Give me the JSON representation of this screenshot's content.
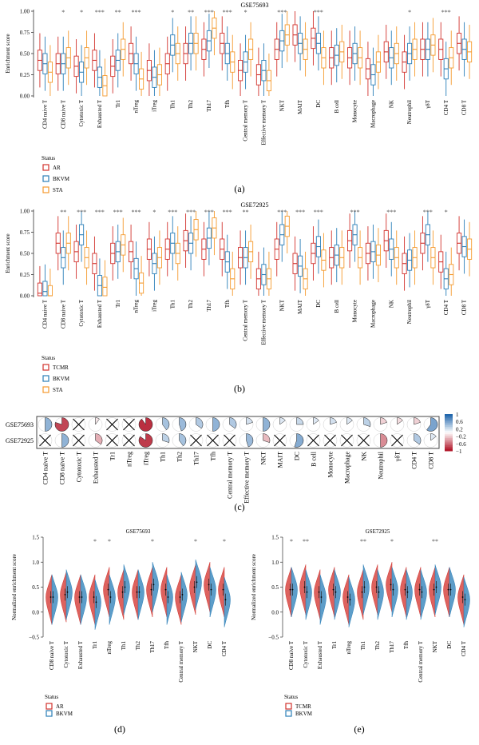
{
  "figure": {
    "panel_labels": [
      "(a)",
      "(b)",
      "(c)",
      "(d)",
      "(e)"
    ]
  },
  "chart_data": [
    {
      "id": "a",
      "type": "boxplot",
      "title": "GSE75693",
      "ylabel": "Enrichment score",
      "ylim": [
        0,
        1
      ],
      "yticks": [
        0.0,
        0.25,
        0.5,
        0.75,
        1.0
      ],
      "ytick_labels": [
        "0.00",
        "0.25",
        "0.50",
        "0.75",
        "1.00"
      ],
      "legend_title": "Status",
      "series": [
        {
          "name": "AR",
          "color": "#d2322d"
        },
        {
          "name": "BKVM",
          "color": "#2c7fb8"
        },
        {
          "name": "STA",
          "color": "#f59a2e"
        }
      ],
      "categories": [
        "CD4 naive T",
        "CD8 naive T",
        "Cytotoxic T",
        "Exhausted T",
        "Tr1",
        "nTreg",
        "iTreg",
        "Th1",
        "Th2",
        "Th17",
        "Tfh",
        "Central memory T",
        "Effective memory T",
        "NKT",
        "MAIT",
        "DC",
        "B cell",
        "Monocyte",
        "Macrophage",
        "NK",
        "Neutrophil",
        "γδT",
        "CD4 T",
        "CD8 T"
      ],
      "significance": [
        "",
        "*",
        "*",
        "***",
        "**",
        "***",
        "",
        "*",
        "**",
        "***",
        "***",
        "*",
        "",
        "***",
        "",
        "***",
        "",
        "",
        "",
        "",
        "*",
        "",
        "***",
        ""
      ],
      "medians": [
        [
          0.42,
          0.38,
          0.28
        ],
        [
          0.38,
          0.38,
          0.45
        ],
        [
          0.35,
          0.28,
          0.45
        ],
        [
          0.42,
          0.22,
          0.12
        ],
        [
          0.35,
          0.42,
          0.55
        ],
        [
          0.5,
          0.38,
          0.2
        ],
        [
          0.3,
          0.22,
          0.25
        ],
        [
          0.38,
          0.6,
          0.5
        ],
        [
          0.5,
          0.62,
          0.62
        ],
        [
          0.55,
          0.65,
          0.8
        ],
        [
          0.62,
          0.5,
          0.4
        ],
        [
          0.3,
          0.4,
          0.55
        ],
        [
          0.25,
          0.3,
          0.18
        ],
        [
          0.55,
          0.65,
          0.72
        ],
        [
          0.72,
          0.62,
          0.55
        ],
        [
          0.68,
          0.62,
          0.45
        ],
        [
          0.45,
          0.48,
          0.52
        ],
        [
          0.45,
          0.5,
          0.45
        ],
        [
          0.32,
          0.25,
          0.4
        ],
        [
          0.52,
          0.45,
          0.5
        ],
        [
          0.4,
          0.5,
          0.55
        ],
        [
          0.55,
          0.55,
          0.6
        ],
        [
          0.55,
          0.32,
          0.45
        ],
        [
          0.62,
          0.55,
          0.52
        ]
      ]
    },
    {
      "id": "b",
      "type": "boxplot",
      "title": "GSE72925",
      "ylabel": "Enrichment score",
      "ylim": [
        0,
        1
      ],
      "yticks": [
        0.0,
        0.25,
        0.5,
        0.75,
        1.0
      ],
      "ytick_labels": [
        "0.00",
        "0.25",
        "0.50",
        "0.75",
        "1.00"
      ],
      "legend_title": "Status",
      "series": [
        {
          "name": "TCMR",
          "color": "#d2322d"
        },
        {
          "name": "BKVM",
          "color": "#2c7fb8"
        },
        {
          "name": "STA",
          "color": "#f59a2e"
        }
      ],
      "categories": [
        "CD4 naive T",
        "CD8 naive T",
        "Cytotoxic T",
        "Exhausted T",
        "Tr1",
        "nTreg",
        "iTreg",
        "Th1",
        "Th2",
        "Th17",
        "Tfh",
        "Central memory T",
        "Effective memory T",
        "NKT",
        "MAIT",
        "DC",
        "B cell",
        "Monocyte",
        "Macrophage",
        "NK",
        "Neutrophil",
        "γδT",
        "CD4 T",
        "CD8 T"
      ],
      "significance": [
        "",
        "**",
        "***",
        "***",
        "***",
        "***",
        "*",
        "***",
        "***",
        "***",
        "***",
        "**",
        "",
        "***",
        "***",
        "***",
        "",
        "***",
        "",
        "***",
        "",
        "***",
        "*",
        ""
      ],
      "medians": [
        [
          0.03,
          0.05,
          0.0
        ],
        [
          0.62,
          0.45,
          0.62
        ],
        [
          0.52,
          0.72,
          0.45
        ],
        [
          0.38,
          0.12,
          0.1
        ],
        [
          0.5,
          0.52,
          0.6
        ],
        [
          0.52,
          0.32,
          0.15
        ],
        [
          0.55,
          0.38,
          0.45
        ],
        [
          0.55,
          0.62,
          0.5
        ],
        [
          0.65,
          0.62,
          0.78
        ],
        [
          0.55,
          0.68,
          0.8
        ],
        [
          0.55,
          0.4,
          0.2
        ],
        [
          0.45,
          0.45,
          0.52
        ],
        [
          0.2,
          0.25,
          0.2
        ],
        [
          0.55,
          0.72,
          0.82
        ],
        [
          0.38,
          0.35,
          0.2
        ],
        [
          0.5,
          0.58,
          0.42
        ],
        [
          0.45,
          0.48,
          0.45
        ],
        [
          0.65,
          0.72,
          0.45
        ],
        [
          0.5,
          0.52,
          0.48
        ],
        [
          0.65,
          0.55,
          0.45
        ],
        [
          0.38,
          0.42,
          0.45
        ],
        [
          0.62,
          0.72,
          0.45
        ],
        [
          0.4,
          0.2,
          0.25
        ],
        [
          0.62,
          0.58,
          0.55
        ]
      ]
    },
    {
      "id": "c",
      "type": "heatmap",
      "rows": [
        "GSE75693",
        "GSE72925"
      ],
      "columns": [
        "CD4 naive T",
        "CD8 naive T",
        "Cytotoxic T",
        "Exhausted T",
        "Tr1",
        "nTreg",
        "iTreg",
        "Th1",
        "Th2",
        "Th17",
        "Tfh",
        "Central memory T",
        "Effective memory T",
        "NKT",
        "MAIT",
        "DC",
        "B cell",
        "Monocyte",
        "Macrophage",
        "NK",
        "Neutrophil",
        "γδT",
        "CD4 T",
        "CD8 T"
      ],
      "values": [
        [
          0.5,
          -0.8,
          0,
          -0.1,
          0,
          0,
          -0.9,
          0.4,
          0.45,
          0.35,
          0.5,
          0.35,
          0.2,
          0.5,
          0.15,
          0.25,
          0.15,
          0.2,
          0.15,
          0.3,
          -0.2,
          -0.15,
          -0.2,
          0.6
        ],
        [
          0,
          0.5,
          0,
          -0.35,
          0,
          0,
          -0.85,
          0.3,
          0.4,
          0,
          0,
          0,
          0.45,
          -0.3,
          0,
          0.55,
          0,
          0,
          0,
          0,
          -0.5,
          0,
          0.35,
          0.15
        ]
      ],
      "crossed": [
        [
          false,
          false,
          true,
          false,
          true,
          true,
          false,
          false,
          false,
          false,
          false,
          false,
          false,
          false,
          false,
          false,
          false,
          false,
          false,
          false,
          false,
          false,
          false,
          false
        ],
        [
          true,
          false,
          true,
          false,
          true,
          true,
          false,
          false,
          false,
          true,
          true,
          true,
          false,
          false,
          true,
          false,
          true,
          true,
          true,
          true,
          false,
          true,
          false,
          false
        ]
      ],
      "scale_ticks": [
        1,
        0.6,
        0.2,
        -0.2,
        -0.6,
        -1
      ],
      "scale_labels": [
        "1",
        "0.6",
        "0.2",
        "−0.2",
        "−0.6",
        "−1"
      ]
    },
    {
      "id": "d",
      "type": "split-violin",
      "title": "GSE75693",
      "ylabel": "Normalized enrichment score",
      "ylim": [
        -0.5,
        1.5
      ],
      "yticks": [
        -0.5,
        0.0,
        0.5,
        1.0,
        1.5
      ],
      "ytick_labels": [
        "−0.5",
        "0.0",
        "0.5",
        "1.0",
        "1.5"
      ],
      "legend_title": "Status",
      "series": [
        {
          "name": "AR",
          "color": "#d2322d"
        },
        {
          "name": "BKVM",
          "color": "#2c7fb8"
        }
      ],
      "categories": [
        "CD8 naive T",
        "Cytotoxic T",
        "Exhausted T",
        "Tr1",
        "nTreg",
        "Th1",
        "Th2",
        "Th17",
        "Tfh",
        "Central memory T",
        "NKT",
        "DC",
        "CD4 T"
      ],
      "significance": [
        "",
        "",
        "",
        "*",
        "*",
        "",
        "",
        "*",
        "",
        "",
        "*",
        "",
        "*"
      ],
      "medians": [
        [
          0.3,
          0.3
        ],
        [
          0.35,
          0.4
        ],
        [
          0.3,
          0.3
        ],
        [
          0.3,
          0.2
        ],
        [
          0.45,
          0.3
        ],
        [
          0.4,
          0.5
        ],
        [
          0.4,
          0.4
        ],
        [
          0.45,
          0.55
        ],
        [
          0.45,
          0.3
        ],
        [
          0.3,
          0.35
        ],
        [
          0.5,
          0.6
        ],
        [
          0.55,
          0.45
        ],
        [
          0.45,
          0.25
        ]
      ]
    },
    {
      "id": "e",
      "type": "split-violin",
      "title": "GSE72925",
      "ylabel": "Normalized enrichment score",
      "ylim": [
        -0.5,
        1.5
      ],
      "yticks": [
        -0.5,
        0.0,
        0.5,
        1.0,
        1.5
      ],
      "ytick_labels": [
        "−0.5",
        "0.0",
        "0.5",
        "1.0",
        "1.5"
      ],
      "legend_title": "Status",
      "series": [
        {
          "name": "TCMR",
          "color": "#d2322d"
        },
        {
          "name": "BKVM",
          "color": "#2c7fb8"
        }
      ],
      "categories": [
        "CD8 naive T",
        "Cytotoxic T",
        "Exhausted T",
        "Tr1",
        "nTreg",
        "Th1",
        "Th2",
        "Th17",
        "Tfh",
        "Central memory T",
        "NKT",
        "DC",
        "CD4 T"
      ],
      "significance": [
        "*",
        "**",
        "",
        "",
        "",
        "**",
        "",
        "*",
        "",
        "",
        "**",
        "",
        ""
      ],
      "medians": [
        [
          0.45,
          0.45
        ],
        [
          0.5,
          0.4
        ],
        [
          0.4,
          0.3
        ],
        [
          0.45,
          0.4
        ],
        [
          0.3,
          0.25
        ],
        [
          0.4,
          0.5
        ],
        [
          0.5,
          0.4
        ],
        [
          0.55,
          0.45
        ],
        [
          0.45,
          0.4
        ],
        [
          0.45,
          0.4
        ],
        [
          0.45,
          0.5
        ],
        [
          0.45,
          0.45
        ],
        [
          0.3,
          0.25
        ]
      ]
    }
  ]
}
